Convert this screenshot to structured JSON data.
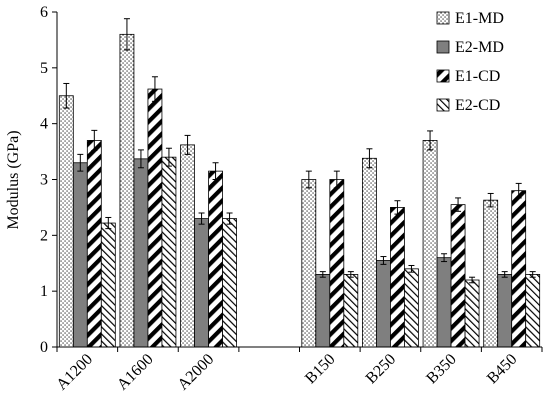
{
  "chart_data": {
    "type": "bar",
    "ylabel": "Modulus (GPa)",
    "xlabel": "",
    "ylim": [
      0,
      6
    ],
    "yticks": [
      0,
      1,
      2,
      3,
      4,
      5,
      6
    ],
    "grid": false,
    "legend_position": "top-right",
    "categories": [
      "A1200",
      "A1600",
      "A2000",
      "",
      "B150",
      "B250",
      "B350",
      "B450"
    ],
    "series": [
      {
        "name": "E1-MD",
        "pattern": "dots",
        "values": [
          4.5,
          5.6,
          3.62,
          null,
          3.0,
          3.38,
          3.7,
          2.63
        ],
        "errors": [
          0.22,
          0.28,
          0.17,
          null,
          0.15,
          0.17,
          0.17,
          0.12
        ]
      },
      {
        "name": "E2-MD",
        "pattern": "solid-gray",
        "values": [
          3.3,
          3.37,
          2.3,
          null,
          1.3,
          1.55,
          1.6,
          1.3
        ],
        "errors": [
          0.15,
          0.16,
          0.1,
          null,
          0.05,
          0.07,
          0.07,
          0.05
        ]
      },
      {
        "name": "E1-CD",
        "pattern": "wide-diagonal",
        "values": [
          3.7,
          4.62,
          3.15,
          null,
          3.0,
          2.5,
          2.55,
          2.8
        ],
        "errors": [
          0.18,
          0.22,
          0.15,
          null,
          0.15,
          0.12,
          0.12,
          0.13
        ]
      },
      {
        "name": "E2-CD",
        "pattern": "narrow-diagonal",
        "values": [
          2.22,
          3.4,
          2.3,
          null,
          1.3,
          1.4,
          1.2,
          1.3
        ],
        "errors": [
          0.1,
          0.16,
          0.1,
          null,
          0.05,
          0.06,
          0.05,
          0.05
        ]
      }
    ],
    "colors": {
      "axis": "#000000",
      "bar_stroke": "#000000",
      "solid_fill": "#7f7f7f"
    }
  }
}
